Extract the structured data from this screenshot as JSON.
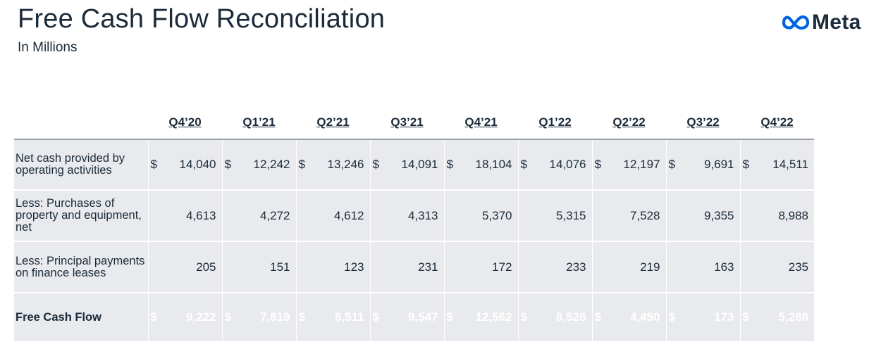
{
  "header": {
    "title": "Free Cash Flow Reconciliation",
    "subtitle": "In Millions"
  },
  "brand": {
    "name": "Meta",
    "color": "#0064e0"
  },
  "table": {
    "columns": [
      "Q4’20",
      "Q1’21",
      "Q2’21",
      "Q3’21",
      "Q4’21",
      "Q1’22",
      "Q2’22",
      "Q3’22",
      "Q4’22"
    ],
    "rows": [
      {
        "label": "Net cash provided by operating activities",
        "dollar": "$",
        "values": [
          "14,040",
          "12,242",
          "13,246",
          "14,091",
          "18,104",
          "14,076",
          "12,197",
          "9,691",
          "14,511"
        ]
      },
      {
        "label": "Less: Purchases of property and equipment, net",
        "dollar": "",
        "values": [
          "4,613",
          "4,272",
          "4,612",
          "4,313",
          "5,370",
          "5,315",
          "7,528",
          "9,355",
          "8,988"
        ]
      },
      {
        "label": "Less: Principal payments on finance leases",
        "dollar": "",
        "values": [
          "205",
          "151",
          "123",
          "231",
          "172",
          "233",
          "219",
          "163",
          "235"
        ]
      }
    ],
    "total": {
      "label": "Free Cash Flow",
      "dollar": "$",
      "values": [
        "9,222",
        "7,819",
        "8,511",
        "9,547",
        "12,562",
        "8,528",
        "4,450",
        "173",
        "5,288"
      ]
    }
  },
  "colors": {
    "text": "#1c2b39",
    "row_bg": "#e8eaed",
    "total_bg": "#354656"
  }
}
